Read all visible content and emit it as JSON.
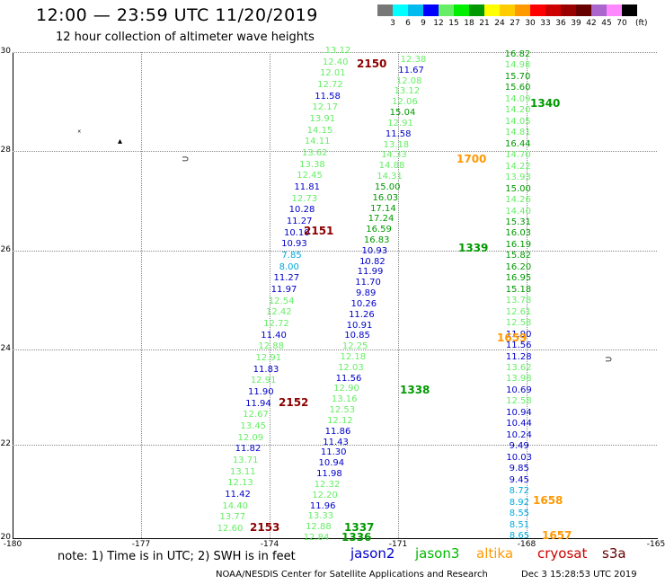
{
  "header": {
    "title": "12:00 — 23:59 UTC 11/20/2019",
    "subtitle": "12 hour collection of altimeter wave heights"
  },
  "scale": {
    "colors": [
      "#777777",
      "#00ffff",
      "#00bbee",
      "#0000ff",
      "#66ee66",
      "#00ee00",
      "#009900",
      "#ffff00",
      "#ffcc00",
      "#ff9900",
      "#ff0000",
      "#cc0000",
      "#990000",
      "#660000",
      "#aa66cc",
      "#ff88ff",
      "#000000"
    ],
    "labels": [
      "3",
      "6",
      "9",
      "12",
      "15",
      "18",
      "21",
      "24",
      "27",
      "30",
      "33",
      "36",
      "39",
      "42",
      "45",
      "70"
    ],
    "unit": "(ft)"
  },
  "axes": {
    "y_ticks": [
      "30",
      "28",
      "26",
      "24",
      "22",
      "20"
    ],
    "x_ticks": [
      "-180",
      "-177",
      "-174",
      "-171",
      "-168",
      "-165"
    ]
  },
  "tracks": {
    "track_2150_2153": [
      {
        "v": "13.12",
        "c": "#66ee66"
      },
      {
        "v": "12.40",
        "c": "#66ee66"
      },
      {
        "v": "12.01",
        "c": "#66ee66"
      },
      {
        "v": "12.72",
        "c": "#66ee66"
      },
      {
        "v": "11.58",
        "c": "#0000cc"
      },
      {
        "v": "12.17",
        "c": "#66ee66"
      },
      {
        "v": "13.91",
        "c": "#66ee66"
      },
      {
        "v": "14.15",
        "c": "#66ee66"
      },
      {
        "v": "14.11",
        "c": "#66ee66"
      },
      {
        "v": "13.62",
        "c": "#66ee66"
      },
      {
        "v": "13.38",
        "c": "#66ee66"
      },
      {
        "v": "12.45",
        "c": "#66ee66"
      },
      {
        "v": "11.81",
        "c": "#0000cc"
      },
      {
        "v": "12.73",
        "c": "#66ee66"
      },
      {
        "v": "10.28",
        "c": "#0000cc"
      },
      {
        "v": "11.27",
        "c": "#0000cc"
      },
      {
        "v": "10.10",
        "c": "#0000cc"
      },
      {
        "v": "10.93",
        "c": "#0000cc"
      },
      {
        "v": "7.85",
        "c": "#00aadd"
      },
      {
        "v": "8.00",
        "c": "#00aadd"
      },
      {
        "v": "11.27",
        "c": "#0000cc"
      },
      {
        "v": "11.97",
        "c": "#0000cc"
      },
      {
        "v": "12.54",
        "c": "#66ee66"
      },
      {
        "v": "12.42",
        "c": "#66ee66"
      },
      {
        "v": "12.72",
        "c": "#66ee66"
      },
      {
        "v": "11.40",
        "c": "#0000cc"
      },
      {
        "v": "12.88",
        "c": "#66ee66"
      },
      {
        "v": "12.91",
        "c": "#66ee66"
      },
      {
        "v": "11.83",
        "c": "#0000cc"
      },
      {
        "v": "12.91",
        "c": "#66ee66"
      },
      {
        "v": "11.90",
        "c": "#0000cc"
      },
      {
        "v": "11.94",
        "c": "#0000cc"
      },
      {
        "v": "12.67",
        "c": "#66ee66"
      },
      {
        "v": "13.45",
        "c": "#66ee66"
      },
      {
        "v": "12.09",
        "c": "#66ee66"
      },
      {
        "v": "11.82",
        "c": "#0000cc"
      },
      {
        "v": "13.71",
        "c": "#66ee66"
      },
      {
        "v": "13.11",
        "c": "#66ee66"
      },
      {
        "v": "12.13",
        "c": "#66ee66"
      },
      {
        "v": "11.42",
        "c": "#0000cc"
      },
      {
        "v": "14.40",
        "c": "#66ee66"
      },
      {
        "v": "13.77",
        "c": "#66ee66"
      },
      {
        "v": "12.60",
        "c": "#66ee66"
      }
    ],
    "track_1338": [
      {
        "v": "12.38",
        "c": "#66ee66"
      },
      {
        "v": "11.67",
        "c": "#0000cc"
      },
      {
        "v": "12.08",
        "c": "#66ee66"
      },
      {
        "v": "13.12",
        "c": "#66ee66"
      },
      {
        "v": "12.06",
        "c": "#66ee66"
      },
      {
        "v": "15.04",
        "c": "#009900"
      },
      {
        "v": "12.91",
        "c": "#66ee66"
      },
      {
        "v": "11.58",
        "c": "#0000cc"
      },
      {
        "v": "13.18",
        "c": "#66ee66"
      },
      {
        "v": "14.33",
        "c": "#66ee66"
      },
      {
        "v": "14.88",
        "c": "#66ee66"
      },
      {
        "v": "14.31",
        "c": "#66ee66"
      },
      {
        "v": "15.00",
        "c": "#009900"
      },
      {
        "v": "16.03",
        "c": "#009900"
      },
      {
        "v": "17.14",
        "c": "#009900"
      },
      {
        "v": "17.24",
        "c": "#009900"
      },
      {
        "v": "16.59",
        "c": "#009900"
      },
      {
        "v": "16.83",
        "c": "#009900"
      },
      {
        "v": "10.93",
        "c": "#0000cc"
      },
      {
        "v": "10.82",
        "c": "#0000cc"
      },
      {
        "v": "11.99",
        "c": "#0000cc"
      },
      {
        "v": "11.70",
        "c": "#0000cc"
      },
      {
        "v": "9.89",
        "c": "#0000cc"
      },
      {
        "v": "10.26",
        "c": "#0000cc"
      },
      {
        "v": "11.26",
        "c": "#0000cc"
      },
      {
        "v": "10.91",
        "c": "#0000cc"
      },
      {
        "v": "10.85",
        "c": "#0000cc"
      },
      {
        "v": "12.25",
        "c": "#66ee66"
      },
      {
        "v": "12.18",
        "c": "#66ee66"
      },
      {
        "v": "12.03",
        "c": "#66ee66"
      },
      {
        "v": "11.56",
        "c": "#0000cc"
      },
      {
        "v": "12.90",
        "c": "#66ee66"
      },
      {
        "v": "13.16",
        "c": "#66ee66"
      },
      {
        "v": "12.53",
        "c": "#66ee66"
      },
      {
        "v": "12.12",
        "c": "#66ee66"
      },
      {
        "v": "11.86",
        "c": "#0000cc"
      },
      {
        "v": "11.43",
        "c": "#0000cc"
      },
      {
        "v": "11.30",
        "c": "#0000cc"
      },
      {
        "v": "10.94",
        "c": "#0000cc"
      },
      {
        "v": "11.98",
        "c": "#0000cc"
      },
      {
        "v": "12.32",
        "c": "#66ee66"
      },
      {
        "v": "12.20",
        "c": "#66ee66"
      },
      {
        "v": "11.96",
        "c": "#0000cc"
      },
      {
        "v": "13.33",
        "c": "#66ee66"
      },
      {
        "v": "12.88",
        "c": "#66ee66"
      },
      {
        "v": "12.84",
        "c": "#66ee66"
      }
    ],
    "track_1340_1659": [
      {
        "v": "16.82",
        "c": "#009900"
      },
      {
        "v": "14.98",
        "c": "#66ee66"
      },
      {
        "v": "15.70",
        "c": "#009900"
      },
      {
        "v": "15.60",
        "c": "#009900"
      },
      {
        "v": "14.09",
        "c": "#66ee66"
      },
      {
        "v": "14.20",
        "c": "#66ee66"
      },
      {
        "v": "14.05",
        "c": "#66ee66"
      },
      {
        "v": "14.81",
        "c": "#66ee66"
      },
      {
        "v": "16.44",
        "c": "#009900"
      },
      {
        "v": "14.70",
        "c": "#66ee66"
      },
      {
        "v": "14.22",
        "c": "#66ee66"
      },
      {
        "v": "13.93",
        "c": "#66ee66"
      },
      {
        "v": "15.00",
        "c": "#009900"
      },
      {
        "v": "14.26",
        "c": "#66ee66"
      },
      {
        "v": "14.40",
        "c": "#66ee66"
      },
      {
        "v": "15.31",
        "c": "#009900"
      },
      {
        "v": "16.03",
        "c": "#009900"
      },
      {
        "v": "16.19",
        "c": "#009900"
      },
      {
        "v": "15.82",
        "c": "#009900"
      },
      {
        "v": "16.20",
        "c": "#009900"
      },
      {
        "v": "16.95",
        "c": "#009900"
      },
      {
        "v": "15.18",
        "c": "#009900"
      },
      {
        "v": "13.78",
        "c": "#66ee66"
      },
      {
        "v": "12.61",
        "c": "#66ee66"
      },
      {
        "v": "12.58",
        "c": "#66ee66"
      },
      {
        "v": "11.90",
        "c": "#0000cc"
      },
      {
        "v": "11.56",
        "c": "#0000cc"
      },
      {
        "v": "11.28",
        "c": "#0000cc"
      },
      {
        "v": "13.62",
        "c": "#66ee66"
      },
      {
        "v": "13.98",
        "c": "#66ee66"
      },
      {
        "v": "10.69",
        "c": "#0000cc"
      },
      {
        "v": "12.58",
        "c": "#66ee66"
      },
      {
        "v": "10.94",
        "c": "#0000cc"
      },
      {
        "v": "10.44",
        "c": "#0000cc"
      },
      {
        "v": "10.24",
        "c": "#0000cc"
      },
      {
        "v": "9.49",
        "c": "#0000cc"
      },
      {
        "v": "10.03",
        "c": "#0000cc"
      },
      {
        "v": "9.85",
        "c": "#0000cc"
      },
      {
        "v": "9.45",
        "c": "#0000cc"
      },
      {
        "v": "8.72",
        "c": "#00aadd"
      },
      {
        "v": "8.92",
        "c": "#00aadd"
      },
      {
        "v": "8.55",
        "c": "#00aadd"
      },
      {
        "v": "8.51",
        "c": "#00aadd"
      },
      {
        "v": "8.65",
        "c": "#00aadd"
      }
    ]
  },
  "time_labels": [
    {
      "t": "2150",
      "c": "#8b0000"
    },
    {
      "t": "2151",
      "c": "#8b0000"
    },
    {
      "t": "2152",
      "c": "#8b0000"
    },
    {
      "t": "2153",
      "c": "#8b0000"
    },
    {
      "t": "1340",
      "c": "#009900"
    },
    {
      "t": "1700",
      "c": "#ff9900"
    },
    {
      "t": "1339",
      "c": "#009900"
    },
    {
      "t": "1659",
      "c": "#ff9900"
    },
    {
      "t": "1338",
      "c": "#009900"
    },
    {
      "t": "1658",
      "c": "#ff9900"
    },
    {
      "t": "1337",
      "c": "#009900"
    },
    {
      "t": "1336",
      "c": "#009900"
    },
    {
      "t": "1657",
      "c": "#ff9900"
    }
  ],
  "note": "note: 1) Time is in UTC; 2) SWH is in feet",
  "legend": [
    {
      "name": "jason2",
      "c": "#0000cc"
    },
    {
      "name": "jason3",
      "c": "#00bb00"
    },
    {
      "name": "altika",
      "c": "#ff9900"
    },
    {
      "name": "cryosat",
      "c": "#cc0000"
    },
    {
      "name": "s3a",
      "c": "#660000"
    }
  ],
  "footer": {
    "credit": "NOAA/NESDIS Center for Satellite Applications and Research",
    "timestamp": "Dec  3 15:28:53 UTC 2019"
  }
}
